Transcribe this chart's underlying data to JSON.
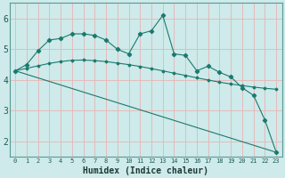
{
  "title": "",
  "xlabel": "Humidex (Indice chaleur)",
  "ylabel": "",
  "bg_color": "#ceeaea",
  "grid_color": "#e8b4b4",
  "line_color": "#1a7a6e",
  "xlim": [
    -0.5,
    23.5
  ],
  "ylim": [
    1.5,
    6.5
  ],
  "xticks": [
    0,
    1,
    2,
    3,
    4,
    5,
    6,
    7,
    8,
    9,
    10,
    11,
    12,
    13,
    14,
    15,
    16,
    17,
    18,
    19,
    20,
    21,
    22,
    23
  ],
  "yticks": [
    2,
    3,
    4,
    5,
    6
  ],
  "series1_x": [
    0,
    1,
    2,
    3,
    4,
    5,
    6,
    7,
    8,
    9,
    10,
    11,
    12,
    13,
    14,
    15,
    16,
    17,
    18,
    19,
    20,
    21,
    22,
    23
  ],
  "series1_y": [
    4.3,
    4.5,
    4.95,
    5.3,
    5.35,
    5.5,
    5.5,
    5.45,
    5.3,
    5.0,
    4.85,
    5.5,
    5.6,
    6.1,
    4.85,
    4.8,
    4.3,
    4.45,
    4.25,
    4.1,
    3.75,
    3.5,
    2.7,
    1.65
  ],
  "series2_x": [
    0,
    23
  ],
  "series2_y": [
    4.3,
    1.65
  ],
  "series3_x": [
    0,
    1,
    2,
    3,
    4,
    5,
    6,
    7,
    8,
    9,
    10,
    11,
    12,
    13,
    14,
    15,
    16,
    17,
    18,
    19,
    20,
    21,
    22,
    23
  ],
  "series3_y": [
    4.3,
    4.38,
    4.46,
    4.54,
    4.6,
    4.64,
    4.65,
    4.63,
    4.6,
    4.55,
    4.5,
    4.44,
    4.37,
    4.3,
    4.22,
    4.15,
    4.07,
    4.0,
    3.93,
    3.87,
    3.82,
    3.77,
    3.73,
    3.7
  ]
}
